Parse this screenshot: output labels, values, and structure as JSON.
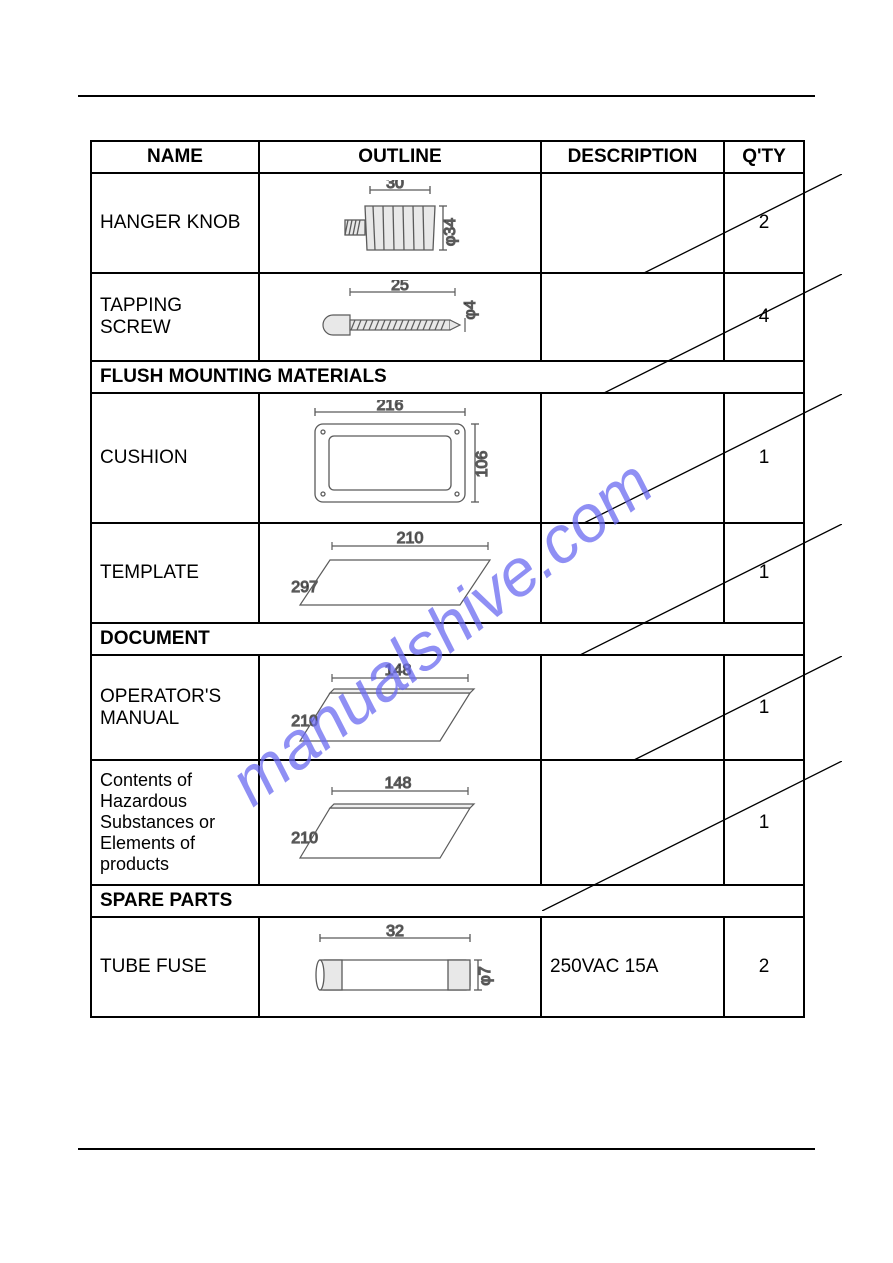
{
  "headers": {
    "name": "NAME",
    "outline": "OUTLINE",
    "description": "DESCRIPTION",
    "qty": "Q'TY"
  },
  "sections": {
    "flush": "FLUSH MOUNTING MATERIALS",
    "document": "DOCUMENT",
    "spare": "SPARE PARTS"
  },
  "rows": {
    "hanger_knob": {
      "name": "HANGER KNOB",
      "description": "",
      "qty": "2",
      "dim_w": "30",
      "dim_h": "φ34"
    },
    "tapping_screw": {
      "name": "TAPPING\nSCREW",
      "description": "",
      "qty": "4",
      "dim_w": "25",
      "dim_h": "φ4"
    },
    "cushion": {
      "name": "CUSHION",
      "description": "",
      "qty": "1",
      "dim_w": "216",
      "dim_h": "106"
    },
    "template": {
      "name": "TEMPLATE",
      "description": "",
      "qty": "1",
      "dim_w": "210",
      "dim_d": "297"
    },
    "operators_manual": {
      "name": "OPERATOR'S\nMANUAL",
      "description": "",
      "qty": "1",
      "dim_w": "148",
      "dim_d": "210"
    },
    "hazardous": {
      "name": "Contents of\nHazardous\nSubstances or\nElements of\nproducts",
      "description": "",
      "qty": "1",
      "dim_w": "148",
      "dim_d": "210"
    },
    "tube_fuse": {
      "name": "TUBE FUSE",
      "description": "250VAC 15A",
      "qty": "2",
      "dim_w": "32",
      "dim_h": "φ7"
    }
  },
  "watermark_text": "manualshive.com",
  "colors": {
    "stroke": "#000000",
    "illus_stroke": "#5b5b5b",
    "illus_fill": "#f0f0f0",
    "watermark": "#6a6af0"
  },
  "row_heights": {
    "hanger_knob": 90,
    "tapping_screw": 78,
    "cushion": 120,
    "template": 90,
    "operators_manual": 95,
    "hazardous": 115,
    "tube_fuse": 90
  }
}
